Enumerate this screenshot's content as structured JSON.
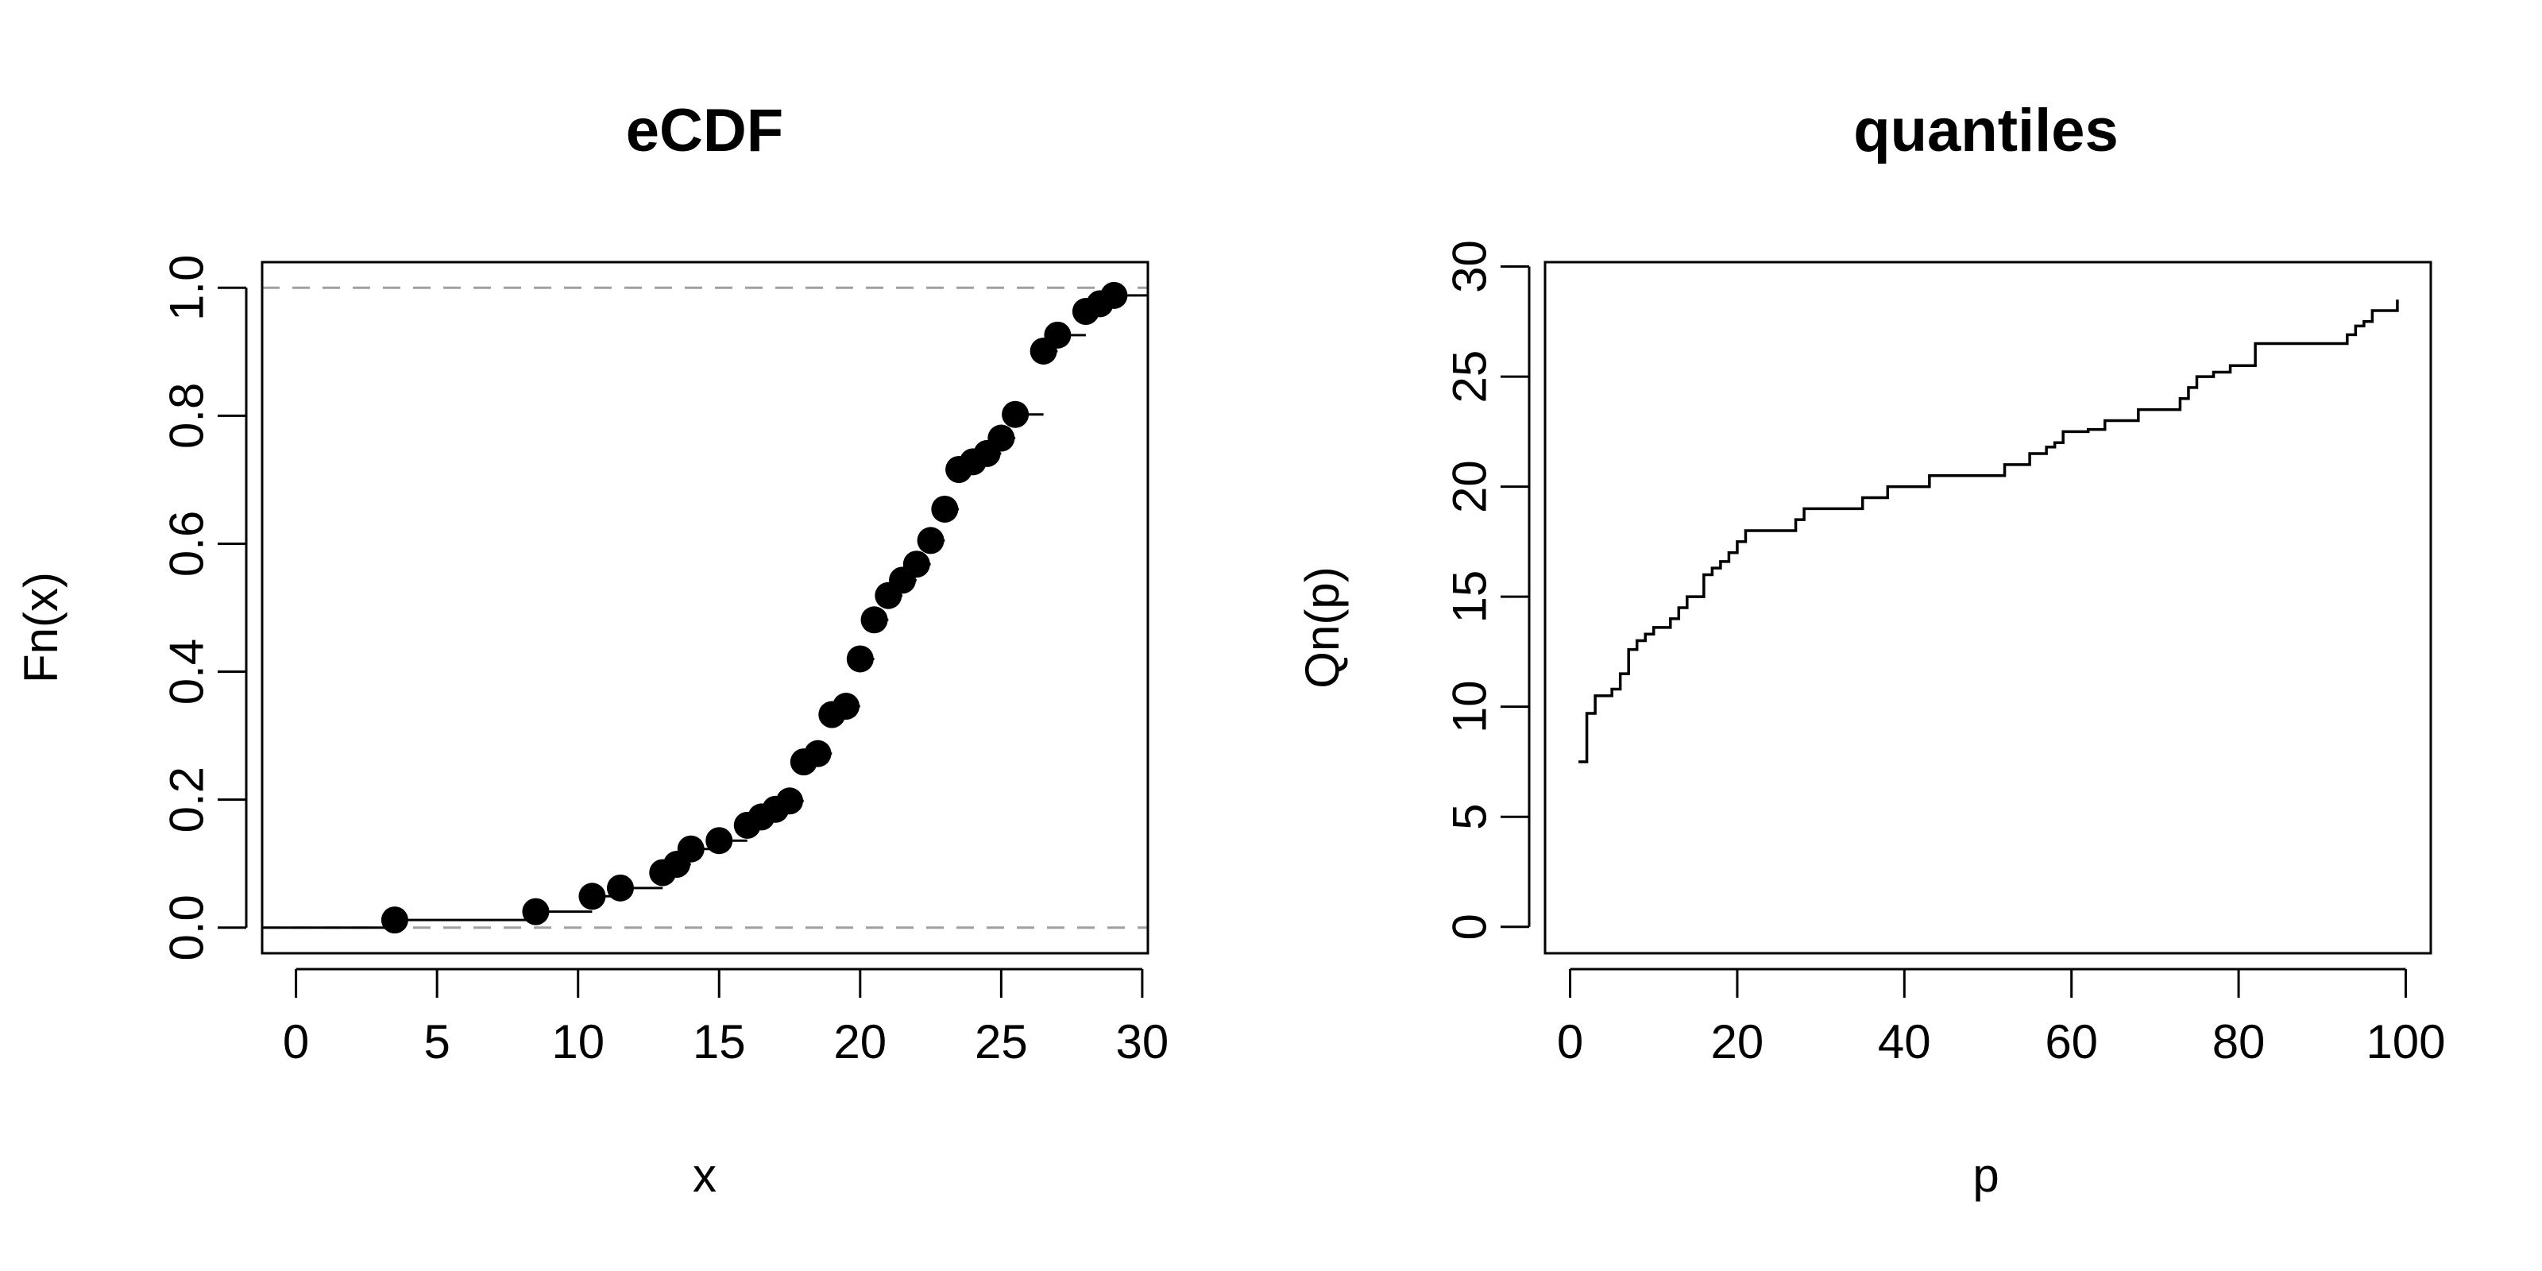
{
  "colors": {
    "background": "#ffffff",
    "foreground": "#000000",
    "reference_line": "#a0a0a0"
  },
  "chart_data": [
    {
      "type": "ecdf",
      "title": "eCDF",
      "xlabel": "x",
      "ylabel": "Fn(x)",
      "xlim": [
        -1.2,
        30.2
      ],
      "ylim": [
        -0.04,
        1.04
      ],
      "x_ticks": [
        0,
        5,
        10,
        15,
        20,
        25,
        30
      ],
      "y_ticks": [
        0.0,
        0.2,
        0.4,
        0.6,
        0.8,
        1.0
      ],
      "x_tick_labels": [
        "0",
        "5",
        "10",
        "15",
        "20",
        "25",
        "30"
      ],
      "y_tick_labels": [
        "0.0",
        "0.2",
        "0.4",
        "0.6",
        "0.8",
        "1.0"
      ],
      "reference_lines_y": [
        0,
        1
      ],
      "grid": false,
      "legend": "none",
      "points": [
        {
          "x": 3.5,
          "y": 0.012
        },
        {
          "x": 8.5,
          "y": 0.025
        },
        {
          "x": 10.5,
          "y": 0.049
        },
        {
          "x": 11.5,
          "y": 0.062
        },
        {
          "x": 13.0,
          "y": 0.086
        },
        {
          "x": 13.5,
          "y": 0.099
        },
        {
          "x": 14.0,
          "y": 0.123
        },
        {
          "x": 15.0,
          "y": 0.136
        },
        {
          "x": 16.0,
          "y": 0.16
        },
        {
          "x": 16.5,
          "y": 0.173
        },
        {
          "x": 17.0,
          "y": 0.185
        },
        {
          "x": 17.5,
          "y": 0.198
        },
        {
          "x": 18.0,
          "y": 0.259
        },
        {
          "x": 18.5,
          "y": 0.272
        },
        {
          "x": 19.0,
          "y": 0.333
        },
        {
          "x": 19.5,
          "y": 0.346
        },
        {
          "x": 20.0,
          "y": 0.42
        },
        {
          "x": 20.5,
          "y": 0.481
        },
        {
          "x": 21.0,
          "y": 0.519
        },
        {
          "x": 21.5,
          "y": 0.543
        },
        {
          "x": 22.0,
          "y": 0.568
        },
        {
          "x": 22.5,
          "y": 0.605
        },
        {
          "x": 23.0,
          "y": 0.654
        },
        {
          "x": 23.5,
          "y": 0.716
        },
        {
          "x": 24.0,
          "y": 0.728
        },
        {
          "x": 24.5,
          "y": 0.741
        },
        {
          "x": 25.0,
          "y": 0.765
        },
        {
          "x": 25.5,
          "y": 0.802
        },
        {
          "x": 26.5,
          "y": 0.901
        },
        {
          "x": 27.0,
          "y": 0.926
        },
        {
          "x": 28.0,
          "y": 0.963
        },
        {
          "x": 28.5,
          "y": 0.975
        },
        {
          "x": 29.0,
          "y": 0.988
        }
      ]
    },
    {
      "type": "line",
      "step": true,
      "title": "quantiles",
      "xlabel": "p",
      "ylabel": "Qn(p)",
      "xlim": [
        -3,
        103
      ],
      "ylim": [
        -1.2,
        30.2
      ],
      "x_ticks": [
        0,
        20,
        40,
        60,
        80,
        100
      ],
      "y_ticks": [
        0,
        5,
        10,
        15,
        20,
        25,
        30
      ],
      "x_tick_labels": [
        "0",
        "20",
        "40",
        "60",
        "80",
        "100"
      ],
      "y_tick_labels": [
        "0",
        "5",
        "10",
        "15",
        "20",
        "25",
        "30"
      ],
      "grid": false,
      "legend": "none",
      "x": [
        1,
        2,
        3,
        5,
        6,
        7,
        8,
        9,
        10,
        12,
        13,
        14,
        16,
        17,
        18,
        19,
        20,
        21,
        26,
        27,
        28,
        34,
        35,
        38,
        42,
        43,
        50,
        52,
        55,
        57,
        58,
        59,
        62,
        64,
        67,
        68,
        72,
        73,
        74,
        75,
        77,
        79,
        82,
        92,
        93,
        94,
        95,
        96,
        99
      ],
      "y": [
        7.5,
        9.7,
        10.5,
        10.8,
        11.5,
        12.6,
        13.0,
        13.3,
        13.6,
        14.0,
        14.5,
        15.0,
        16.0,
        16.3,
        16.6,
        17.0,
        17.5,
        18.0,
        18.0,
        18.5,
        19.0,
        19.0,
        19.5,
        20.0,
        20.0,
        20.5,
        20.5,
        21.0,
        21.5,
        21.8,
        22.0,
        22.5,
        22.6,
        23.0,
        23.0,
        23.5,
        23.5,
        24.0,
        24.5,
        25.0,
        25.2,
        25.5,
        26.5,
        26.5,
        26.9,
        27.3,
        27.5,
        28.0,
        28.5
      ]
    }
  ]
}
